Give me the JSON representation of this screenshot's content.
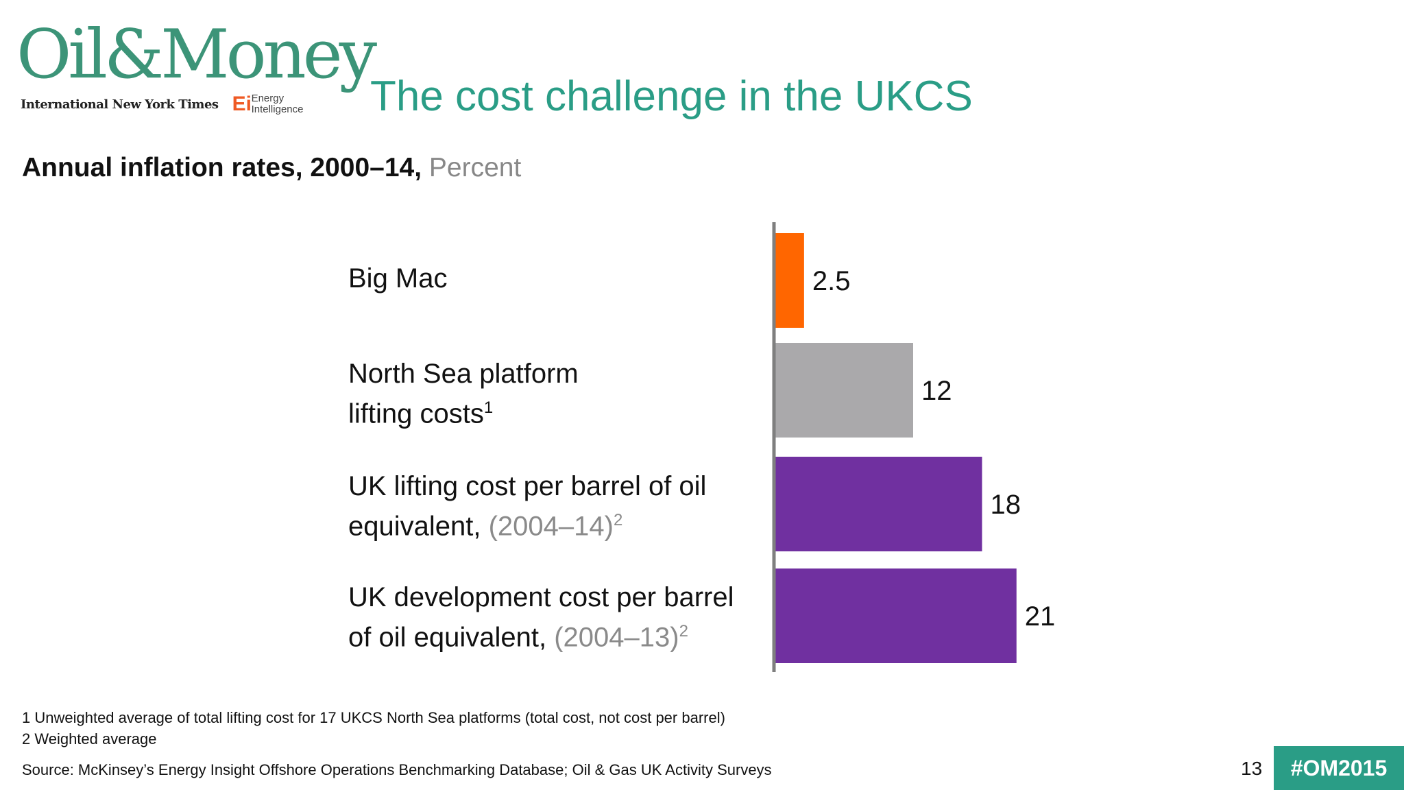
{
  "brand": {
    "logo_text": "Oil&Money",
    "partner_1": "International New York Times",
    "partner_2_mark": "Ei",
    "partner_2_line1": "Energy",
    "partner_2_line2": "Intelligence"
  },
  "slide": {
    "title": "The cost challenge in the UKCS",
    "page_number": "13",
    "hashtag": "#OM2015"
  },
  "chart_data": {
    "type": "bar",
    "orientation": "horizontal",
    "title": "Annual inflation rates, 2000–14,",
    "unit": "Percent",
    "categories": [
      {
        "text": "Big Mac",
        "line2": "",
        "muted": "",
        "sup": ""
      },
      {
        "text": "North Sea platform",
        "line2": "lifting costs",
        "muted": "",
        "sup": "1"
      },
      {
        "text": "UK lifting cost per barrel of oil",
        "line2": "equivalent,",
        "muted": "(2004–14)",
        "sup": "2"
      },
      {
        "text": "UK development cost per barrel",
        "line2": "of oil equivalent,",
        "muted": "(2004–13)",
        "sup": "2"
      }
    ],
    "values": [
      2.5,
      12,
      18,
      21
    ],
    "value_labels": [
      "2.5",
      "12",
      "18",
      "21"
    ],
    "colors": [
      "#ff6600",
      "#aaa9ab",
      "#7030a0",
      "#7030a0"
    ],
    "axis_color": "#7f7f7f"
  },
  "footnotes": [
    "1 Unweighted average of total lifting cost for 17 UKCS North Sea platforms (total cost, not cost per barrel)",
    "2 Weighted average"
  ],
  "source": "Source: McKinsey’s Energy Insight Offshore Operations Benchmarking Database; Oil & Gas UK Activity Surveys"
}
